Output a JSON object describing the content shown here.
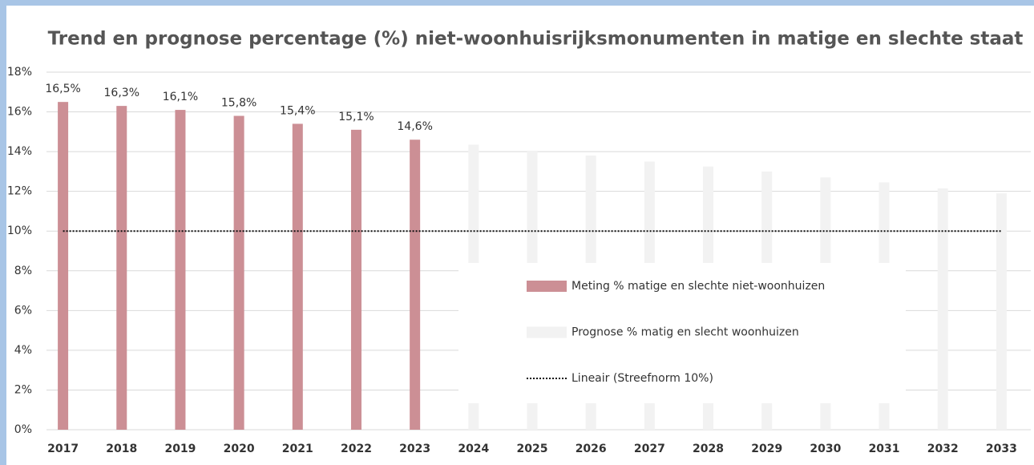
{
  "chart_data": {
    "type": "bar",
    "title": "Trend en prognose percentage (%) niet-woonhuisrijksmonumenten in matige en slechte staat",
    "categories": [
      "2017",
      "2018",
      "2019",
      "2020",
      "2021",
      "2022",
      "2023",
      "2024",
      "2025",
      "2026",
      "2027",
      "2028",
      "2029",
      "2030",
      "2031",
      "2032",
      "2033"
    ],
    "series": [
      {
        "name": "Meting % matige en slechte niet-woonhuizen",
        "color": "#cc8f95",
        "type": "bar",
        "values": [
          16.5,
          16.3,
          16.1,
          15.8,
          15.4,
          15.1,
          14.6,
          null,
          null,
          null,
          null,
          null,
          null,
          null,
          null,
          null,
          null
        ],
        "value_labels": [
          "16,5%",
          "16,3%",
          "16,1%",
          "15,8%",
          "15,4%",
          "15,1%",
          "14,6%",
          null,
          null,
          null,
          null,
          null,
          null,
          null,
          null,
          null,
          null
        ]
      },
      {
        "name": "Prognose % matig en slecht woonhuizen",
        "color": "#f2f2f2",
        "type": "bar",
        "values": [
          null,
          null,
          null,
          null,
          null,
          null,
          null,
          14.35,
          14.05,
          13.8,
          13.5,
          13.25,
          13.0,
          12.7,
          12.45,
          12.15,
          11.9
        ]
      },
      {
        "name": "Lineair (Streefnorm 10%)",
        "color": "#111111",
        "type": "line",
        "values": [
          10,
          10,
          10,
          10,
          10,
          10,
          10,
          10,
          10,
          10,
          10,
          10,
          10,
          10,
          10,
          10,
          10
        ]
      }
    ],
    "ylim": [
      0,
      18
    ],
    "yticks": [
      {
        "value": 0,
        "label": "0%"
      },
      {
        "value": 2,
        "label": "2%"
      },
      {
        "value": 4,
        "label": "4%"
      },
      {
        "value": 6,
        "label": "6%"
      },
      {
        "value": 8,
        "label": "8%"
      },
      {
        "value": 10,
        "label": "10%"
      },
      {
        "value": 12,
        "label": "12%"
      },
      {
        "value": 14,
        "label": "14%"
      },
      {
        "value": 16,
        "label": "16%"
      },
      {
        "value": 18,
        "label": "18%"
      }
    ],
    "grid": true
  }
}
